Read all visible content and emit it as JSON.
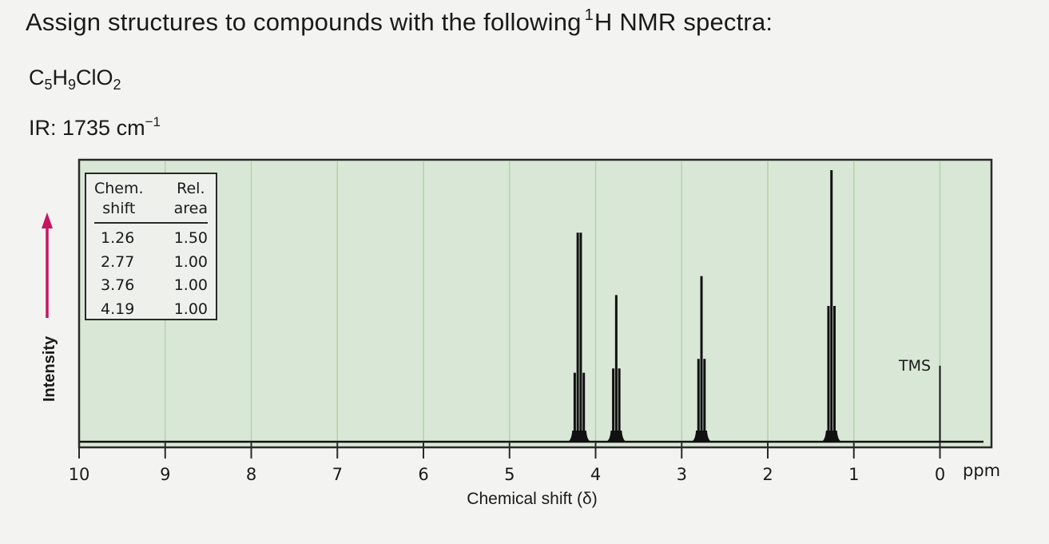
{
  "heading": {
    "title_pre": "Assign structures to compounds with the following",
    "title_sup": "1",
    "title_post": "H NMR spectra:"
  },
  "formula": {
    "c": "C",
    "c_n": "5",
    "h": "H",
    "h_n": "9",
    "cl_o": "ClO",
    "o_n": "2"
  },
  "ir": {
    "text": "IR: 1735 cm",
    "sup": "−1"
  },
  "table": {
    "col1_line1": "Chem.",
    "col1_line2": "shift",
    "col2_line1": "Rel.",
    "col2_line2": "area",
    "rows": [
      {
        "shift": "1.26",
        "area": "1.50"
      },
      {
        "shift": "2.77",
        "area": "1.00"
      },
      {
        "shift": "3.76",
        "area": "1.00"
      },
      {
        "shift": "4.19",
        "area": "1.00"
      }
    ]
  },
  "chart_data": {
    "type": "line",
    "xlabel": "Chemical shift (δ)",
    "ylabel": "Intensity",
    "x_unit": "ppm",
    "xlim": [
      10,
      0
    ],
    "x_reversed": true,
    "x_ticks": [
      "10",
      "9",
      "8",
      "7",
      "6",
      "5",
      "4",
      "3",
      "2",
      "1",
      "0"
    ],
    "grid": true,
    "reference_label": "TMS",
    "peaks": [
      {
        "shift": 4.19,
        "multiplicity": "quartet",
        "height": 0.77,
        "integral": 1.0
      },
      {
        "shift": 3.76,
        "multiplicity": "triplet",
        "height": 0.54,
        "integral": 1.0
      },
      {
        "shift": 2.77,
        "multiplicity": "triplet",
        "height": 0.61,
        "integral": 1.0
      },
      {
        "shift": 1.26,
        "multiplicity": "triplet",
        "height": 1.0,
        "integral": 1.5
      },
      {
        "shift": 0.0,
        "multiplicity": "singlet",
        "height": 0.28,
        "integral": null
      }
    ],
    "colors": {
      "plot_bg": "#d9e8d6",
      "grid": "#b5d2b0",
      "trace": "#111111",
      "arrow": "#c7155f"
    }
  }
}
